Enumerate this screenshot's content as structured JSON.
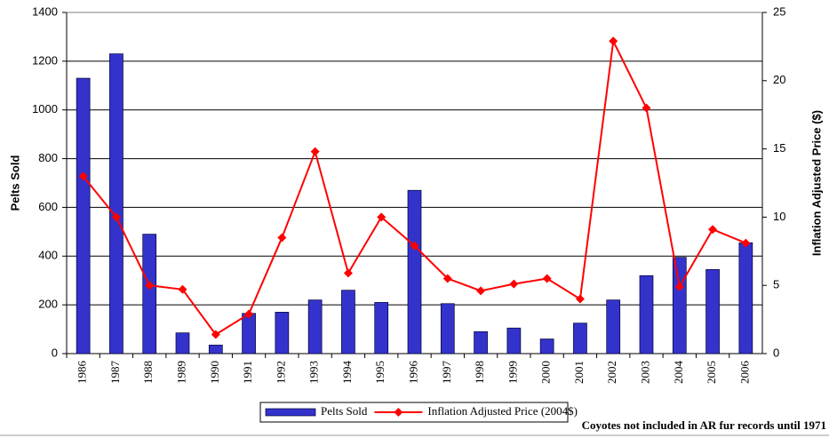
{
  "chart_data": {
    "type": "bar_line",
    "categories": [
      "1986",
      "1987",
      "1988",
      "1989",
      "1990",
      "1991",
      "1992",
      "1993",
      "1994",
      "1995",
      "1996",
      "1997",
      "1998",
      "1999",
      "2000",
      "2001",
      "2002",
      "2003",
      "2004",
      "2005",
      "2006"
    ],
    "series": [
      {
        "name": "Pelts Sold",
        "type": "bar",
        "color": "#3333cc",
        "axis": "y",
        "values": [
          1130,
          1230,
          490,
          85,
          35,
          165,
          170,
          220,
          260,
          210,
          670,
          205,
          90,
          105,
          60,
          125,
          220,
          320,
          395,
          345,
          455
        ]
      },
      {
        "name": "Inflation Adjusted Price (2004$)",
        "type": "line",
        "color": "#ff0000",
        "axis": "y2",
        "values": [
          13.0,
          10.0,
          5.0,
          4.7,
          1.4,
          2.9,
          8.5,
          14.8,
          5.9,
          10.0,
          7.9,
          5.5,
          4.6,
          5.1,
          5.5,
          4.0,
          22.9,
          18.0,
          4.9,
          9.1,
          8.1
        ]
      }
    ],
    "ylabel": "Pelts Sold",
    "y2label": "Inflation Adjusted Price ($)",
    "ylim": [
      0,
      1400
    ],
    "yticks": [
      0,
      200,
      400,
      600,
      800,
      1000,
      1200,
      1400
    ],
    "y2lim": [
      0,
      25
    ],
    "y2ticks": [
      0,
      5,
      10,
      15,
      20,
      25
    ],
    "grid": true,
    "legend": "bottom",
    "annotation": "Coyotes not included in AR fur records until 1971"
  }
}
